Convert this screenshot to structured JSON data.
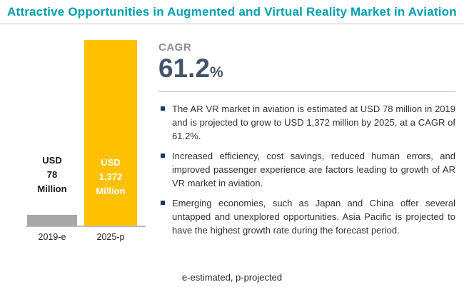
{
  "title": "Attractive Opportunities in Augmented and Virtual Reality Market in Aviation",
  "chart_data": {
    "type": "bar",
    "categories": [
      "2019-e",
      "2025-p"
    ],
    "values": [
      78,
      1372
    ],
    "value_labels": [
      "USD\n78\nMillion",
      "USD\n1,372\nMillion"
    ],
    "unit": "USD Million",
    "ylim": [
      0,
      1372
    ],
    "grid": false,
    "legend": false
  },
  "cagr": {
    "label": "CAGR",
    "value": "61.2",
    "percent_sign": "%"
  },
  "bullets": [
    "The AR VR market in aviation is estimated at USD 78 million in 2019 and is projected to grow to USD 1,372 million by 2025, at a CAGR of 61.2%.",
    "Increased efficiency, cost savings, reduced human errors, and improved passenger experience are factors leading to growth of AR VR market in aviation.",
    "Emerging economies, such as Japan and China offer several untapped and unexplored opportunities. Asia Pacific is projected to have the highest growth rate during the forecast period."
  ],
  "footnote": "e-estimated, p-projected",
  "colors": {
    "title": "#00A0B0",
    "bar_2019": "#A6A6A6",
    "bar_2025": "#FFC000",
    "cagr_text": "#44546A",
    "bullet_marker": "#1F3864"
  }
}
